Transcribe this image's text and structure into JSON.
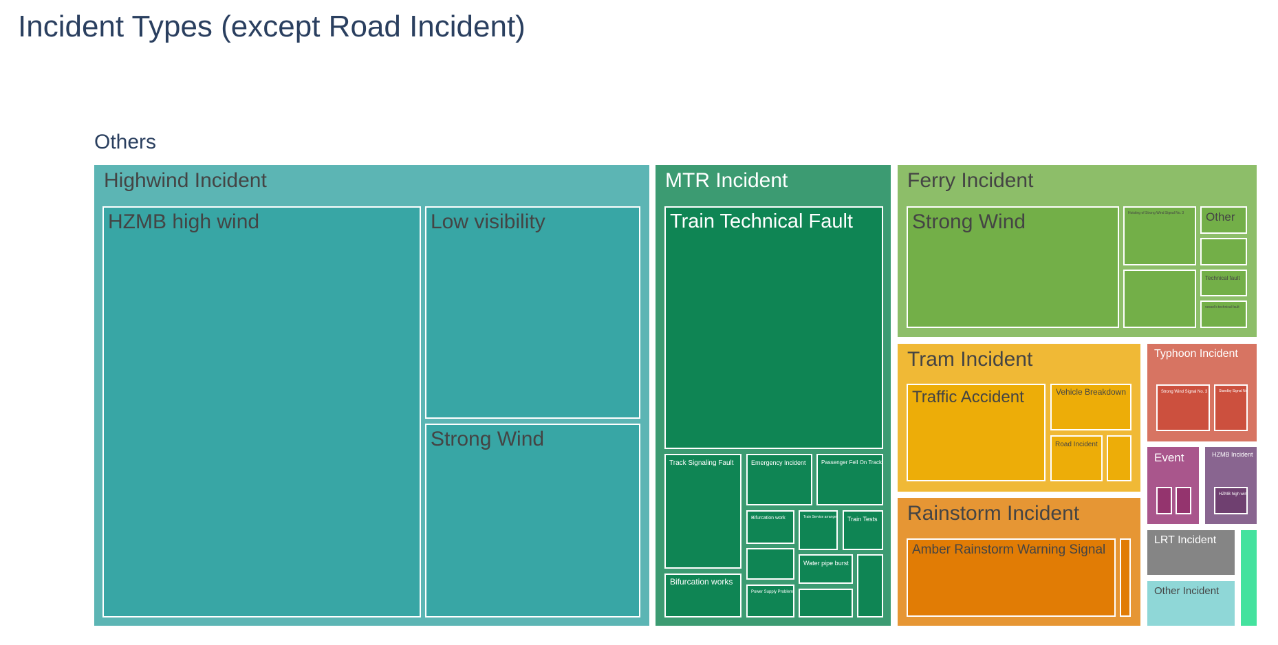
{
  "title": "Incident Types (except Road Incident)",
  "root": "Others",
  "chart_data": {
    "type": "treemap",
    "title": "Incident Types (except Road Incident)",
    "root": "Others",
    "groups": [
      {
        "name": "Highwind Incident",
        "color": "#5cb5b4",
        "leaf_color": "#38a6a5",
        "children": [
          {
            "name": "HZMB high wind",
            "value": 1150
          },
          {
            "name": "Low visibility",
            "value": 415
          },
          {
            "name": "Strong Wind",
            "value": 375
          }
        ]
      },
      {
        "name": "MTR Incident",
        "color": "#3c9b72",
        "leaf_color": "#0f8554",
        "children": [
          {
            "name": "Train Technical Fault",
            "value": 375
          },
          {
            "name": "Track Signaling Fault",
            "value": 57
          },
          {
            "name": "Emergency Incident",
            "value": 20
          },
          {
            "name": "Passenger Fell On Track",
            "value": 20
          },
          {
            "name": "Bifurcation work",
            "value": 12
          },
          {
            "name": "Train Service arrangement",
            "value": 12
          },
          {
            "name": "Train Tests",
            "value": 12
          },
          {
            "name": "",
            "value": 12
          },
          {
            "name": "Water pipe burst",
            "value": 12
          },
          {
            "name": "",
            "value": 14
          },
          {
            "name": "Bifurcation works",
            "value": 20
          },
          {
            "name": "Power Supply Problem",
            "value": 12
          },
          {
            "name": "",
            "value": 12
          }
        ]
      },
      {
        "name": "Ferry Incident",
        "color": "#8dbe69",
        "leaf_color": "#73af48",
        "children": [
          {
            "name": "Strong Wind",
            "value": 120
          },
          {
            "name": "Hoisting of Strong Wind Signal No. 3",
            "value": 40
          },
          {
            "name": "",
            "value": 40
          },
          {
            "name": "Other",
            "value": 14
          },
          {
            "name": "",
            "value": 12
          },
          {
            "name": "Technical fault",
            "value": 12
          },
          {
            "name": "vessel's technical fault",
            "value": 12
          }
        ]
      },
      {
        "name": "Tram Incident",
        "color": "#f0b936",
        "leaf_color": "#edad08",
        "children": [
          {
            "name": "Traffic Accident",
            "value": 70
          },
          {
            "name": "Vehicle Breakdown",
            "value": 30
          },
          {
            "name": "Road Incident",
            "value": 20
          },
          {
            "name": "",
            "value": 10
          }
        ]
      },
      {
        "name": "Rainstorm Incident",
        "color": "#e69634",
        "leaf_color": "#e17c05",
        "children": [
          {
            "name": "Amber Rainstorm Warning Signal",
            "value": 95
          },
          {
            "name": "",
            "value": 5
          }
        ]
      },
      {
        "name": "Typhoon Incident",
        "color": "#d77462",
        "leaf_color": "#cc503e",
        "children": [
          {
            "name": "Strong Wind Signal No. 3",
            "value": 18
          },
          {
            "name": "Standby Signal No. 1",
            "value": 12
          }
        ]
      },
      {
        "name": "Event",
        "color": "#a9568c",
        "leaf_color": "#94346e",
        "children": [
          {
            "name": "",
            "value": 5
          },
          {
            "name": "",
            "value": 5
          }
        ]
      },
      {
        "name": "HZMB Incident",
        "color": "#896590",
        "leaf_color": "#6f4070",
        "children": [
          {
            "name": "HZMB high wind",
            "value": 12
          }
        ]
      },
      {
        "name": "LRT Incident",
        "color": "#858585",
        "children": []
      },
      {
        "name": "Other Incident",
        "color": "#8fd7d7",
        "children": []
      },
      {
        "name": "",
        "color": "#44e29e",
        "children": []
      }
    ]
  }
}
